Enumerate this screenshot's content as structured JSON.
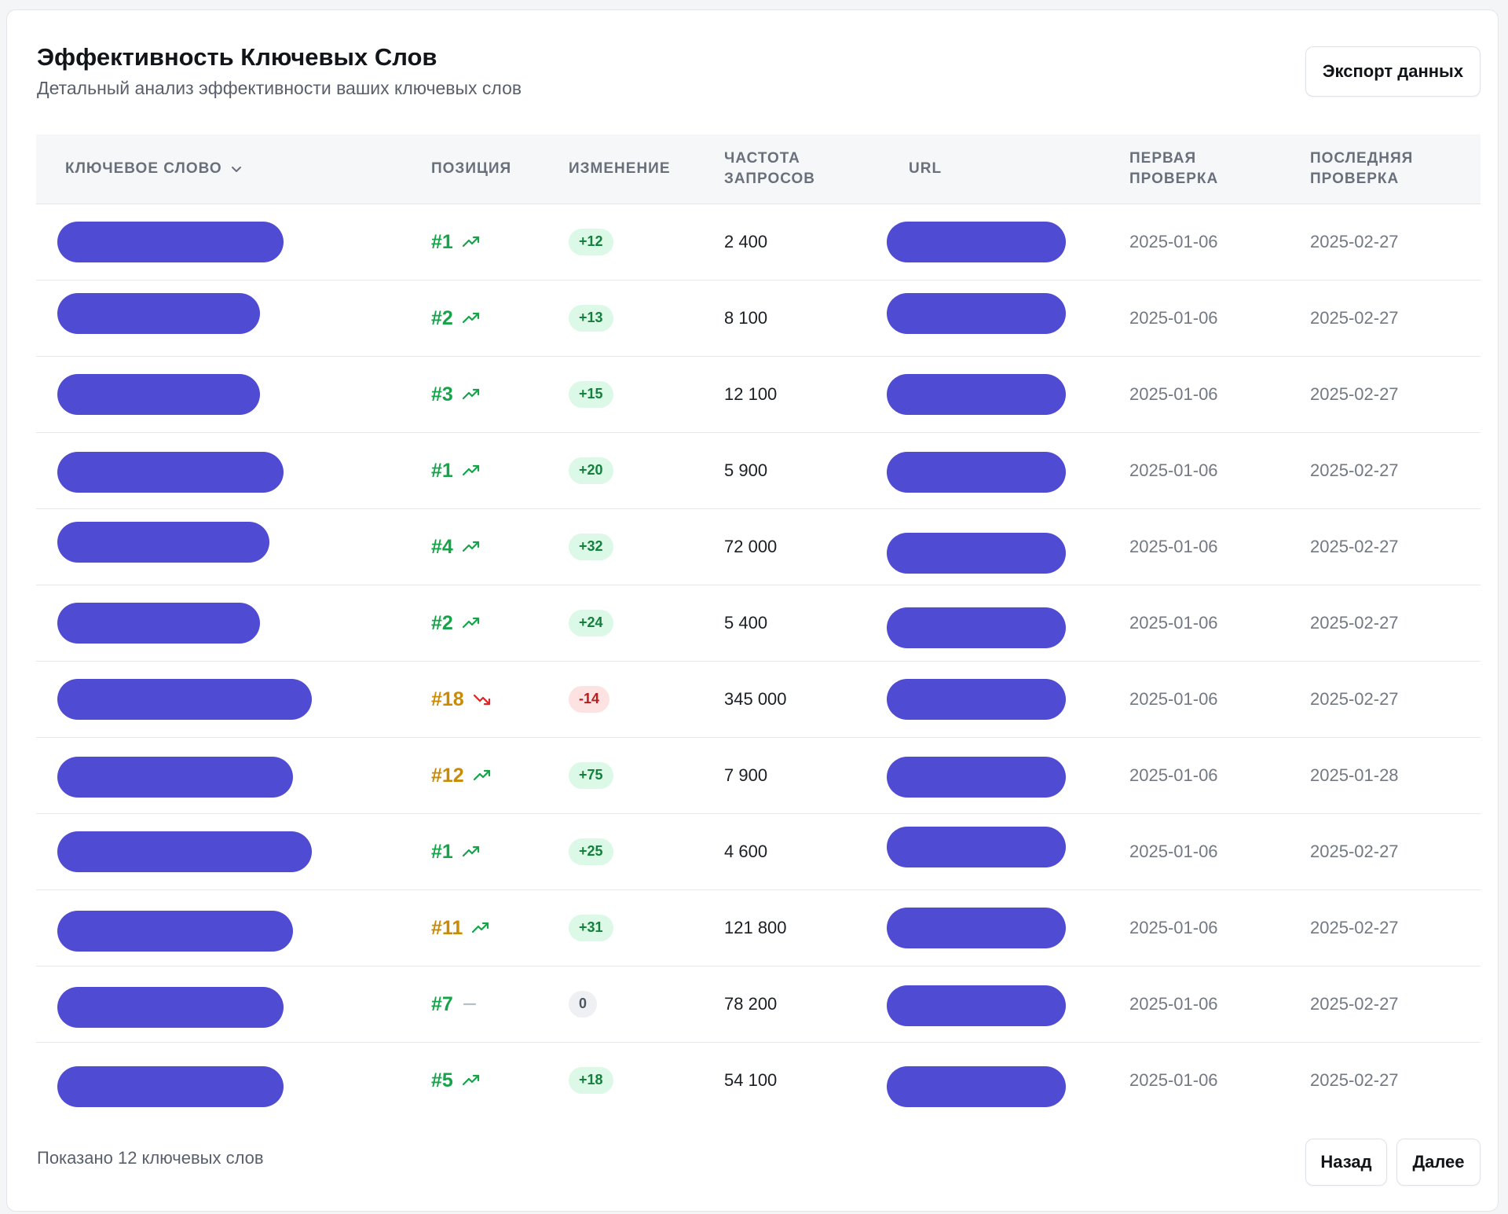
{
  "header": {
    "title": "Эффективность Ключевых Слов",
    "subtitle": "Детальный анализ эффективности ваших ключевых слов"
  },
  "actions": {
    "export_label": "Экспорт данных",
    "back_label": "Назад",
    "next_label": "Далее"
  },
  "table": {
    "columns": {
      "keyword": "КЛЮЧЕВОЕ СЛОВО",
      "position": "ПОЗИЦИЯ",
      "change": "ИЗМЕНЕНИЕ",
      "frequency": "ЧАСТОТА ЗАПРОСОВ",
      "url": "URL",
      "first_check": "ПЕРВАЯ ПРОВЕРКА",
      "last_check": "ПОСЛЕДНЯЯ ПРОВЕРКА"
    },
    "rows": [
      {
        "position": "#1",
        "position_color": "#16a34a",
        "trend": "up",
        "change": "+12",
        "change_type": "up",
        "frequency": "2 400",
        "first_check": "2025-01-06",
        "last_check": "2025-02-27"
      },
      {
        "position": "#2",
        "position_color": "#16a34a",
        "trend": "up",
        "change": "+13",
        "change_type": "up",
        "frequency": "8 100",
        "first_check": "2025-01-06",
        "last_check": "2025-02-27"
      },
      {
        "position": "#3",
        "position_color": "#16a34a",
        "trend": "up",
        "change": "+15",
        "change_type": "up",
        "frequency": "12 100",
        "first_check": "2025-01-06",
        "last_check": "2025-02-27"
      },
      {
        "position": "#1",
        "position_color": "#16a34a",
        "trend": "up",
        "change": "+20",
        "change_type": "up",
        "frequency": "5 900",
        "first_check": "2025-01-06",
        "last_check": "2025-02-27"
      },
      {
        "position": "#4",
        "position_color": "#16a34a",
        "trend": "up",
        "change": "+32",
        "change_type": "up",
        "frequency": "72 000",
        "first_check": "2025-01-06",
        "last_check": "2025-02-27"
      },
      {
        "position": "#2",
        "position_color": "#16a34a",
        "trend": "up",
        "change": "+24",
        "change_type": "up",
        "frequency": "5 400",
        "first_check": "2025-01-06",
        "last_check": "2025-02-27"
      },
      {
        "position": "#18",
        "position_color": "#ca8a04",
        "trend": "down",
        "change": "-14",
        "change_type": "down",
        "frequency": "345 000",
        "first_check": "2025-01-06",
        "last_check": "2025-02-27"
      },
      {
        "position": "#12",
        "position_color": "#ca8a04",
        "trend": "up",
        "change": "+75",
        "change_type": "up",
        "frequency": "7 900",
        "first_check": "2025-01-06",
        "last_check": "2025-01-28"
      },
      {
        "position": "#1",
        "position_color": "#16a34a",
        "trend": "up",
        "change": "+25",
        "change_type": "up",
        "frequency": "4 600",
        "first_check": "2025-01-06",
        "last_check": "2025-02-27"
      },
      {
        "position": "#11",
        "position_color": "#ca8a04",
        "trend": "up",
        "change": "+31",
        "change_type": "up",
        "frequency": "121 800",
        "first_check": "2025-01-06",
        "last_check": "2025-02-27"
      },
      {
        "position": "#7",
        "position_color": "#16a34a",
        "trend": "flat",
        "change": "0",
        "change_type": "flat",
        "frequency": "78 200",
        "first_check": "2025-01-06",
        "last_check": "2025-02-27"
      },
      {
        "position": "#5",
        "position_color": "#16a34a",
        "trend": "up",
        "change": "+18",
        "change_type": "up",
        "frequency": "54 100",
        "first_check": "2025-01-06",
        "last_check": "2025-02-27"
      }
    ]
  },
  "footer": {
    "summary": "Показано 12 ключевых слов"
  },
  "colors": {
    "redaction": "#4f4bd3",
    "good": "#16a34a",
    "warn": "#ca8a04",
    "bad": "#dc2626"
  },
  "icons": {
    "sort": "chevron-down-icon",
    "trend_up": "trending-up-icon",
    "trend_down": "trending-down-icon",
    "trend_flat": "minus-icon"
  }
}
